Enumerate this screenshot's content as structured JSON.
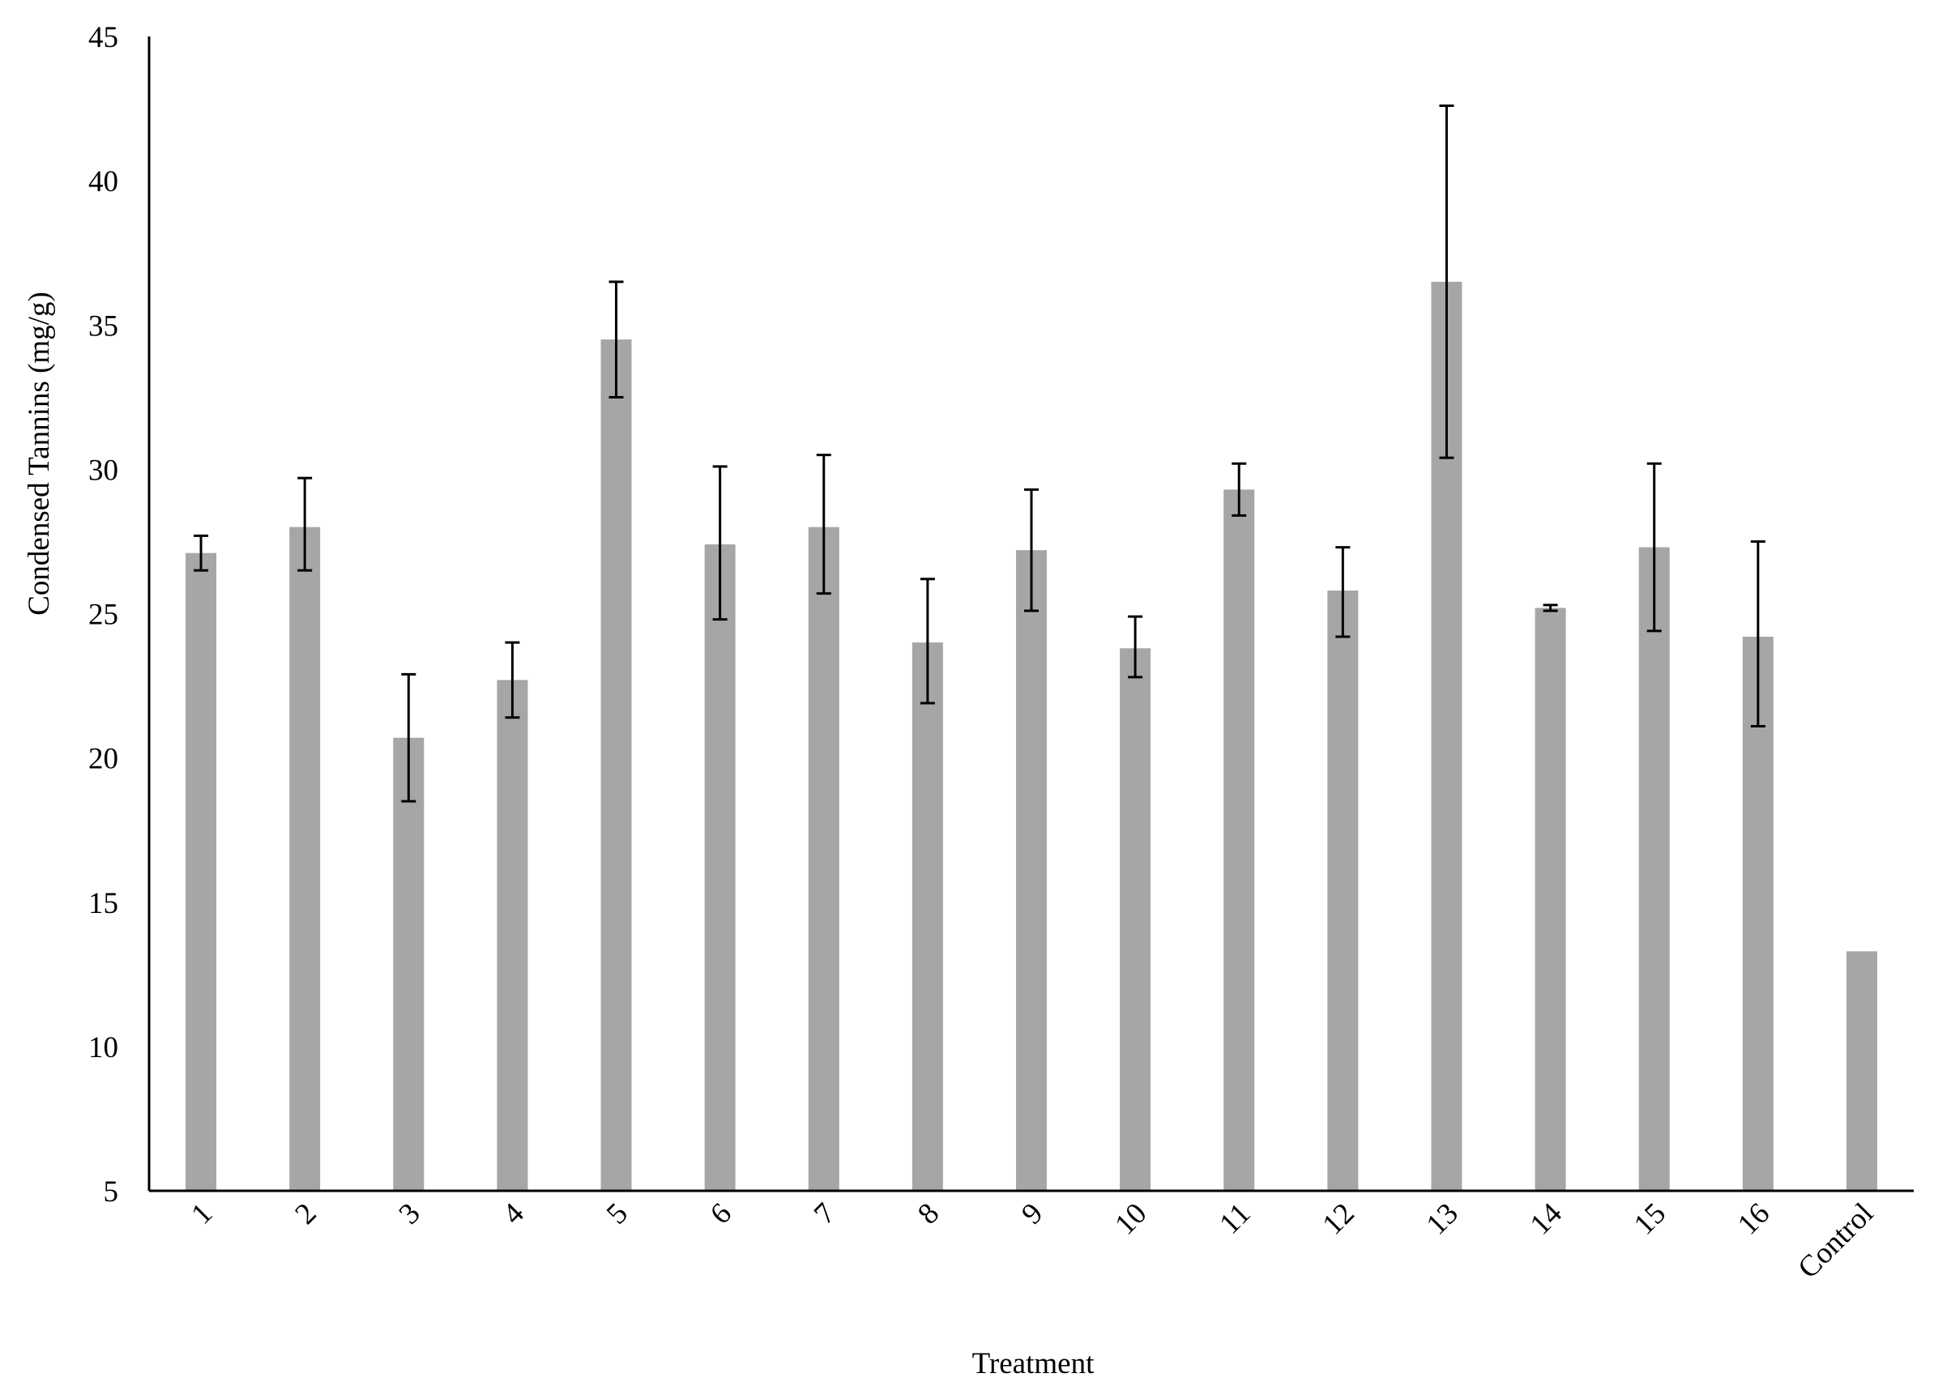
{
  "chart_data": {
    "type": "bar",
    "title": "",
    "xlabel": "Treatment",
    "ylabel": "Condensed Tannins  (mg/g)",
    "ylim": [
      5,
      45
    ],
    "yticks": [
      5,
      10,
      15,
      20,
      25,
      30,
      35,
      40,
      45
    ],
    "categories": [
      "1",
      "2",
      "3",
      "4",
      "5",
      "6",
      "7",
      "8",
      "9",
      "10",
      "11",
      "12",
      "13",
      "14",
      "15",
      "16",
      "Control"
    ],
    "values": [
      27.1,
      28.0,
      20.7,
      22.7,
      34.5,
      27.4,
      28.0,
      24.0,
      27.2,
      23.8,
      29.3,
      25.8,
      36.5,
      25.2,
      27.3,
      24.2,
      13.3
    ],
    "error_plus": [
      0.6,
      1.7,
      2.2,
      1.3,
      2.0,
      2.7,
      2.5,
      2.2,
      2.1,
      1.1,
      0.9,
      1.5,
      6.1,
      0.1,
      2.9,
      3.3,
      0
    ],
    "error_minus": [
      0.6,
      1.5,
      2.2,
      1.3,
      2.0,
      2.6,
      2.3,
      2.1,
      2.1,
      1.0,
      0.9,
      1.6,
      6.1,
      0.1,
      2.9,
      3.1,
      0
    ],
    "bar_color": "#a6a6a6",
    "error_bar_color": "#000000",
    "grid": false,
    "legend": "none"
  }
}
